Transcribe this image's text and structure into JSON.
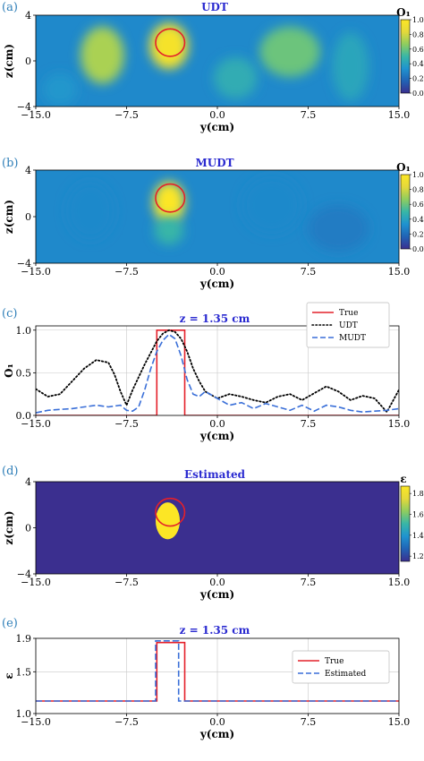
{
  "chart_data": [
    {
      "panel": "(a)",
      "type": "heatmap",
      "title": "UDT",
      "xlabel": "y(cm)",
      "ylabel": "z(cm)",
      "xlim": [
        -15,
        15
      ],
      "ylim": [
        -4,
        4
      ],
      "xticks": [
        "−15.0",
        "−7.5",
        "0.0",
        "7.5",
        "15.0"
      ],
      "yticks": [
        "−4",
        "0",
        "4"
      ],
      "colorbar": {
        "label": "O₁",
        "ticks": [
          "0.0",
          "0.2",
          "0.4",
          "0.6",
          "0.8",
          "1.0"
        ],
        "range": [
          0,
          1
        ]
      },
      "colormap": [
        "#3b2f8f",
        "#2163b5",
        "#1f93d0",
        "#38b6a7",
        "#8fcd5f",
        "#e4d93b",
        "#fce625"
      ],
      "circle": {
        "cy": -3.9,
        "cz": 1.6,
        "r": 1.2,
        "color": "#e4202a"
      },
      "blobs": [
        {
          "y": -4.0,
          "z": 1.3,
          "ry": 1.6,
          "rz": 2.0,
          "v": 0.95
        },
        {
          "y": -9.5,
          "z": 0.5,
          "ry": 1.8,
          "rz": 2.5,
          "v": 0.72
        },
        {
          "y": 6.0,
          "z": 0.8,
          "ry": 2.5,
          "rz": 2.2,
          "v": 0.6
        },
        {
          "y": 1.5,
          "z": -1.5,
          "ry": 1.8,
          "rz": 1.8,
          "v": 0.45
        },
        {
          "y": 11.0,
          "z": -0.5,
          "ry": 1.5,
          "rz": 3.0,
          "v": 0.42
        },
        {
          "y": -13.0,
          "z": -2.5,
          "ry": 1.4,
          "rz": 1.4,
          "v": 0.35
        }
      ]
    },
    {
      "panel": "(b)",
      "type": "heatmap",
      "title": "MUDT",
      "xlabel": "y(cm)",
      "ylabel": "z(cm)",
      "xlim": [
        -15,
        15
      ],
      "ylim": [
        -4,
        4
      ],
      "xticks": [
        "−15.0",
        "−7.5",
        "0.0",
        "7.5",
        "15.0"
      ],
      "yticks": [
        "−4",
        "0",
        "4"
      ],
      "colorbar": {
        "label": "O₁",
        "ticks": [
          "0.0",
          "0.2",
          "0.4",
          "0.6",
          "0.8",
          "1.0"
        ],
        "range": [
          0,
          1
        ]
      },
      "colormap": [
        "#3b2f8f",
        "#2163b5",
        "#1f93d0",
        "#38b6a7",
        "#8fcd5f",
        "#e4d93b",
        "#fce625"
      ],
      "circle": {
        "cy": -3.9,
        "cz": 1.6,
        "r": 1.2,
        "color": "#e4202a"
      },
      "blobs": [
        {
          "y": -4.0,
          "z": 1.2,
          "ry": 1.3,
          "rz": 1.8,
          "v": 1.0
        },
        {
          "y": -4.0,
          "z": -1.2,
          "ry": 1.2,
          "rz": 1.2,
          "v": 0.5
        },
        {
          "y": -10.5,
          "z": 0.5,
          "ry": 2.0,
          "rz": 2.5,
          "v": 0.3
        },
        {
          "y": 4.5,
          "z": 1.0,
          "ry": 2.5,
          "rz": 2.5,
          "v": 0.3
        },
        {
          "y": 10.0,
          "z": -1.0,
          "ry": 2.5,
          "rz": 2.0,
          "v": 0.25
        }
      ]
    },
    {
      "panel": "(c)",
      "type": "line",
      "title": "z = 1.35 cm",
      "xlabel": "y(cm)",
      "ylabel": "O₁",
      "xlim": [
        -15,
        15
      ],
      "ylim": [
        0,
        1.05
      ],
      "xticks": [
        "−15.0",
        "−7.5",
        "0.0",
        "7.5",
        "15.0"
      ],
      "yticks": [
        "0.0",
        "0.5",
        "1.0"
      ],
      "grid": true,
      "legend": "top-right",
      "series": [
        {
          "name": "True",
          "color": "#e4202a",
          "style": "solid",
          "x": [
            -15,
            -5,
            -5,
            -2.7,
            -2.7,
            15
          ],
          "y": [
            0.0,
            0.0,
            1.0,
            1.0,
            0.0,
            0.0
          ]
        },
        {
          "name": "UDT",
          "color": "#000000",
          "style": "dotted",
          "x": [
            -15,
            -14,
            -13,
            -12,
            -11,
            -10,
            -9,
            -8.5,
            -8,
            -7.5,
            -7,
            -6,
            -5,
            -4.5,
            -4,
            -3.5,
            -3,
            -2.5,
            -2,
            -1.5,
            -1,
            0,
            1,
            2,
            3,
            4,
            5,
            6,
            7,
            8,
            9,
            10,
            11,
            12,
            13,
            14,
            15
          ],
          "y": [
            0.31,
            0.22,
            0.25,
            0.4,
            0.55,
            0.65,
            0.62,
            0.48,
            0.28,
            0.12,
            0.3,
            0.6,
            0.87,
            0.96,
            1.0,
            0.98,
            0.9,
            0.75,
            0.55,
            0.4,
            0.28,
            0.2,
            0.25,
            0.22,
            0.18,
            0.15,
            0.22,
            0.25,
            0.18,
            0.26,
            0.34,
            0.28,
            0.18,
            0.23,
            0.2,
            0.04,
            0.3
          ]
        },
        {
          "name": "MUDT",
          "color": "#3a6fd8",
          "style": "dashed",
          "x": [
            -15,
            -14,
            -13,
            -12,
            -11,
            -10,
            -9,
            -8,
            -7.5,
            -7,
            -6.5,
            -6,
            -5.5,
            -5,
            -4.5,
            -4,
            -3.5,
            -3,
            -2.5,
            -2,
            -1.5,
            -1,
            0,
            1,
            2,
            3,
            4,
            5,
            6,
            7,
            8,
            9,
            10,
            11,
            12,
            13,
            14,
            15
          ],
          "y": [
            0.03,
            0.06,
            0.07,
            0.08,
            0.1,
            0.12,
            0.1,
            0.12,
            0.06,
            0.05,
            0.1,
            0.3,
            0.55,
            0.75,
            0.88,
            0.95,
            0.9,
            0.7,
            0.42,
            0.25,
            0.22,
            0.28,
            0.2,
            0.12,
            0.15,
            0.08,
            0.14,
            0.1,
            0.06,
            0.12,
            0.05,
            0.12,
            0.1,
            0.06,
            0.04,
            0.05,
            0.06,
            0.08
          ]
        }
      ]
    },
    {
      "panel": "(d)",
      "type": "heatmap",
      "title": "Estimated",
      "xlabel": "y(cm)",
      "ylabel": "z(cm)",
      "xlim": [
        -15,
        15
      ],
      "ylim": [
        -4,
        4
      ],
      "xticks": [
        "−15.0",
        "−7.5",
        "0.0",
        "7.5",
        "15.0"
      ],
      "yticks": [
        "−4",
        "0",
        "4"
      ],
      "colorbar": {
        "label": "ε",
        "ticks": [
          "1.2",
          "1.4",
          "1.6",
          "1.8"
        ],
        "range": [
          1.15,
          1.87
        ]
      },
      "colormap": [
        "#3b2f8f",
        "#2163b5",
        "#1f93d0",
        "#38b6a7",
        "#8fcd5f",
        "#e4d93b",
        "#fce625"
      ],
      "background_value": 1.15,
      "region": {
        "cy": -4.1,
        "cz": 0.6,
        "ry": 1.0,
        "rz": 1.6,
        "value": 1.87
      },
      "circle": {
        "cy": -3.9,
        "cz": 1.35,
        "r": 1.2,
        "color": "#e4202a"
      }
    },
    {
      "panel": "(e)",
      "type": "line",
      "title": "z = 1.35 cm",
      "xlabel": "y(cm)",
      "ylabel": "ε",
      "xlim": [
        -15,
        15
      ],
      "ylim": [
        1.0,
        1.9
      ],
      "xticks": [
        "−15.0",
        "−7.5",
        "0.0",
        "7.5",
        "15.0"
      ],
      "yticks": [
        "1.0",
        "1.5",
        "1.9"
      ],
      "grid": true,
      "legend": "right",
      "series": [
        {
          "name": "True",
          "color": "#e4202a",
          "style": "solid",
          "x": [
            -15,
            -5,
            -5,
            -2.7,
            -2.7,
            15
          ],
          "y": [
            1.15,
            1.15,
            1.85,
            1.85,
            1.15,
            1.15
          ]
        },
        {
          "name": "Estimated",
          "color": "#3a6fd8",
          "style": "dashed",
          "x": [
            -15,
            -5.1,
            -5.1,
            -3.2,
            -3.2,
            15
          ],
          "y": [
            1.15,
            1.15,
            1.87,
            1.87,
            1.15,
            1.15
          ]
        }
      ]
    }
  ]
}
